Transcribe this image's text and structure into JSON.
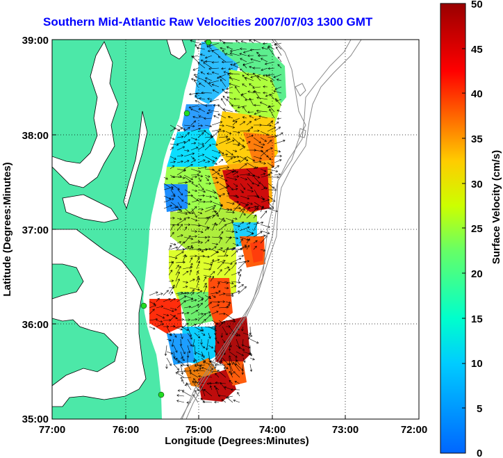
{
  "title": "Southern Mid-Atlantic Raw Velocities 2007/07/03 1300 GMT",
  "xlabel": "Longitude (Degrees:Minutes)",
  "ylabel": "Latitude (Degrees:Minutes)",
  "colorbar_label": "Surface Velocity (cm/s)",
  "x_ticks": [
    "77:00",
    "76:00",
    "75:00",
    "74:00",
    "73:00",
    "72:00"
  ],
  "y_ticks": [
    "39:00",
    "38:00",
    "37:00",
    "36:00",
    "35:00"
  ],
  "colorbar_ticks": [
    "50",
    "45",
    "40",
    "35",
    "30",
    "25",
    "20",
    "15",
    "10",
    "5",
    "0"
  ],
  "colors": {
    "land": "#4ce8a8",
    "title": "#0000ff",
    "arrows": "#000000",
    "stations": "#22dd22"
  },
  "map_extent": {
    "lon_west": -77,
    "lon_east": -72,
    "lat_south": 35,
    "lat_north": 39
  },
  "colorbar_range": [
    0,
    50
  ],
  "grid": "dotted"
}
